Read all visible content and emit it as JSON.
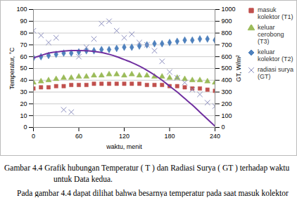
{
  "chart_data": {
    "type": "scatter",
    "x": [
      0,
      10,
      20,
      30,
      40,
      50,
      60,
      70,
      80,
      90,
      100,
      110,
      120,
      130,
      140,
      150,
      160,
      170,
      180,
      190,
      200,
      210,
      220,
      230,
      240
    ],
    "xlim": [
      0,
      240
    ],
    "xticks": [
      0,
      60,
      120,
      180,
      240
    ],
    "ylim": [
      0,
      100
    ],
    "yticks": [
      0,
      10,
      20,
      30,
      40,
      50,
      60,
      70,
      80,
      90,
      100
    ],
    "y2lim": [
      0,
      1000
    ],
    "y2ticks": [
      0,
      100,
      200,
      300,
      400,
      500,
      600,
      700,
      800,
      900,
      1000
    ],
    "xlabel": "waktu, menit",
    "ylabel": "Temperatur, °C",
    "y2label": "GT, W/m²",
    "grid": true,
    "legend": "right",
    "caption": "Gambar 4.4 Grafik hubungan Temperatur ( T ) dan Radiasi Surya ( GT ) terhadap waktu untuk Data kedua.",
    "annotations": [
      "Pada gambar 4.4 dapat dilihat bahwa besarnya temperatur pada saat masuk kolektor"
    ],
    "series": [
      {
        "name": "masuk kolektor (T1)",
        "color": "#c0504d",
        "marker": "square",
        "values": [
          33,
          34,
          34,
          35,
          35,
          36,
          36,
          36,
          37,
          37,
          37,
          37,
          37,
          37,
          37,
          36,
          36,
          36,
          35,
          35,
          34,
          33,
          33,
          32,
          31
        ]
      },
      {
        "name": "keluar cerobong (T3)",
        "color": "#9bbb59",
        "marker": "triangle",
        "values": [
          38,
          39,
          40,
          41,
          42,
          42,
          43,
          43,
          44,
          44,
          45,
          45,
          44,
          45,
          44,
          44,
          43,
          43,
          42,
          42,
          41,
          40,
          40,
          39,
          38
        ]
      },
      {
        "name": "keluar kolektor (T2)",
        "color": "#4f81bd",
        "marker": "diamond",
        "values": [
          59,
          60,
          61,
          62,
          63,
          63,
          64,
          65,
          65,
          66,
          66,
          67,
          68,
          68,
          69,
          70,
          71,
          71,
          72,
          73,
          74,
          74,
          75,
          75,
          74
        ]
      },
      {
        "name": "radiasi surya (GT)",
        "color": "#8c8fbf",
        "marker": "x",
        "axis": "y2",
        "values": [
          820,
          780,
          720,
          760,
          150,
          130,
          600,
          680,
          750,
          880,
          900,
          820,
          760,
          790,
          720,
          700,
          650,
          560,
          470,
          420,
          380,
          320,
          280,
          210,
          180
        ]
      },
      {
        "type": "line",
        "color": "#7030a0",
        "axis": "y2",
        "values": [
          590,
          610,
          630,
          640,
          648,
          652,
          652,
          650,
          645,
          635,
          620,
          600,
          575,
          550,
          520,
          485,
          445,
          400,
          350,
          300,
          245,
          190,
          130,
          70,
          10
        ]
      }
    ]
  }
}
